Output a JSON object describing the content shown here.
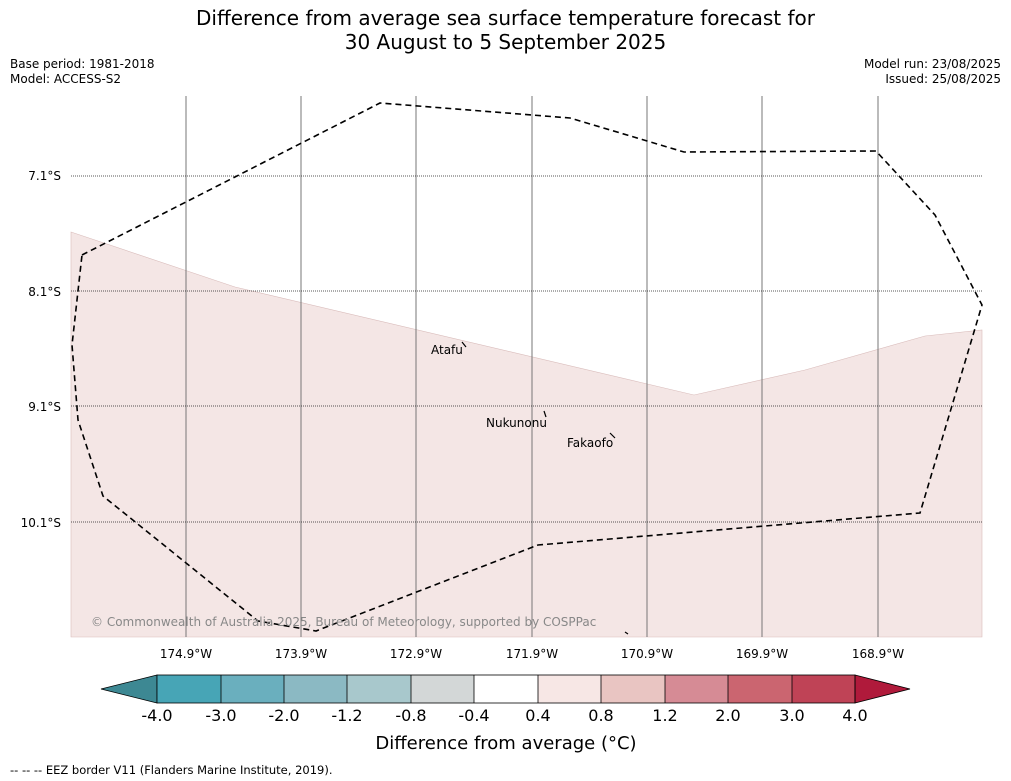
{
  "title": {
    "line1": "Difference from average sea surface temperature forecast for",
    "line2": "30 August to 5 September 2025"
  },
  "meta": {
    "base_period": "Base period: 1981-2018",
    "model": "Model: ACCESS-S2",
    "model_run": "Model run: 23/08/2025",
    "issued": "Issued: 25/08/2025"
  },
  "map": {
    "lat_labels": [
      "7.1°S",
      "8.1°S",
      "9.1°S",
      "10.1°S"
    ],
    "lon_labels": [
      "174.9°W",
      "173.9°W",
      "172.9°W",
      "171.9°W",
      "170.9°W",
      "169.9°W",
      "168.9°W"
    ],
    "places": [
      "Atafu",
      "Nukunonu",
      "Fakaofo"
    ],
    "copyright": "© Commonwealth of Australia 2025, Bureau of Meteorology, supported by COSPPac",
    "anomaly_fill_color": "#f4e6e5",
    "eez_line_style": "dashed"
  },
  "colorbar": {
    "tick_labels": [
      "-4.0",
      "-3.0",
      "-2.0",
      "-1.2",
      "-0.8",
      "-0.4",
      "0.4",
      "0.8",
      "1.2",
      "2.0",
      "3.0",
      "4.0"
    ],
    "colors": [
      "#3d8893",
      "#47a5b6",
      "#6aafbe",
      "#8bb9c3",
      "#a8c8cc",
      "#d3d7d7",
      "#ffffff",
      "#f7e7e5",
      "#e9c5c2",
      "#d68b95",
      "#cb6570",
      "#bf4356",
      "#b01a3b"
    ],
    "label": "Difference from average (°C)"
  },
  "footnote": "--  --  -- EEZ border V11 (Flanders Marine Institute, 2019)."
}
